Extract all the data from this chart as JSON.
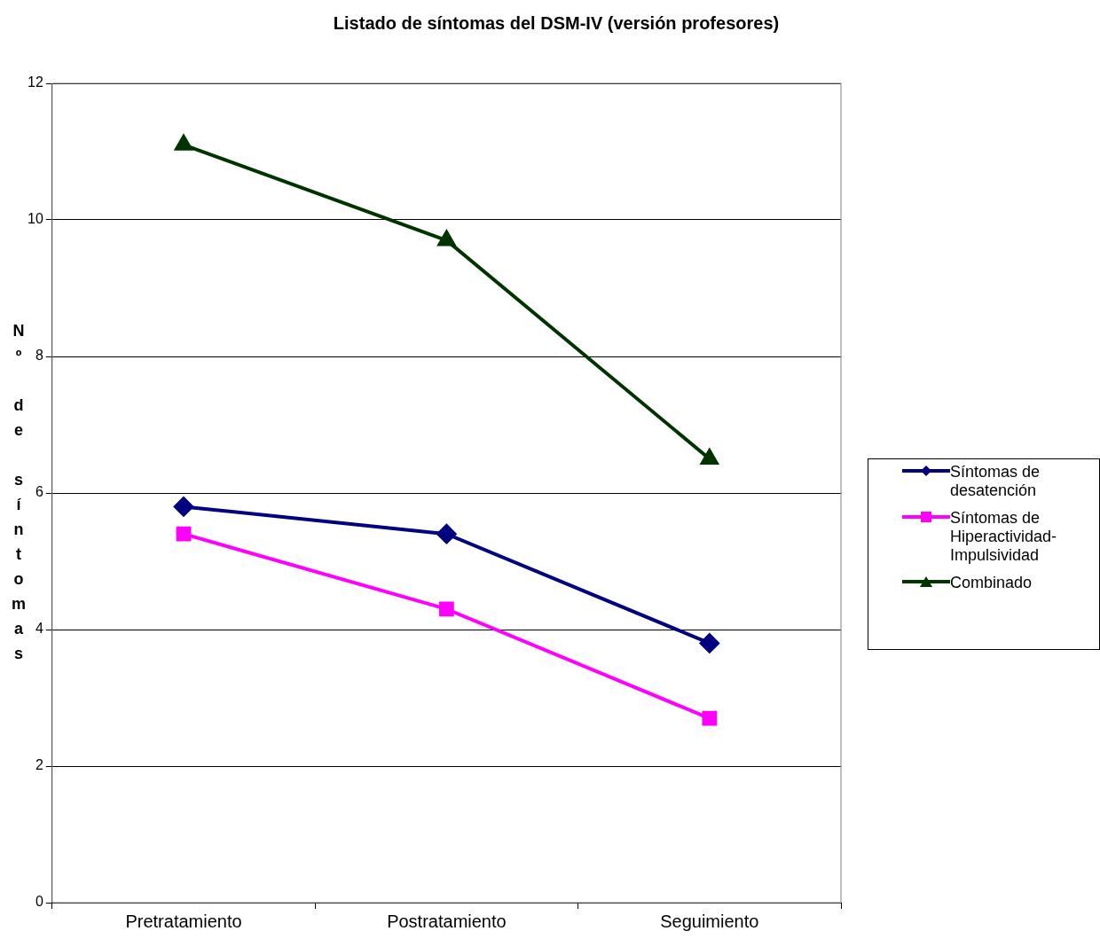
{
  "chart_data": {
    "type": "line",
    "title": "Listado de síntomas del DSM-IV (versión profesores)",
    "ylabel": "Nº de síntomas",
    "categories": [
      "Pretratamiento",
      "Postratamiento",
      "Seguimiento"
    ],
    "series": [
      {
        "name": "Síntomas de desatención",
        "color": "#000080",
        "marker": "diamond",
        "values": [
          5.8,
          5.4,
          3.8
        ]
      },
      {
        "name": "Síntomas de Hiperactividad-Impulsividad",
        "color": "#ff00ff",
        "marker": "square",
        "values": [
          5.4,
          4.3,
          2.7
        ]
      },
      {
        "name": "Combinado",
        "color": "#003300",
        "marker": "triangle",
        "values": [
          11.1,
          9.7,
          6.5
        ]
      }
    ],
    "ylim": [
      0,
      12
    ],
    "yticks": [
      0,
      2,
      4,
      6,
      8,
      10,
      12
    ],
    "grid": "y",
    "legend": "right"
  }
}
